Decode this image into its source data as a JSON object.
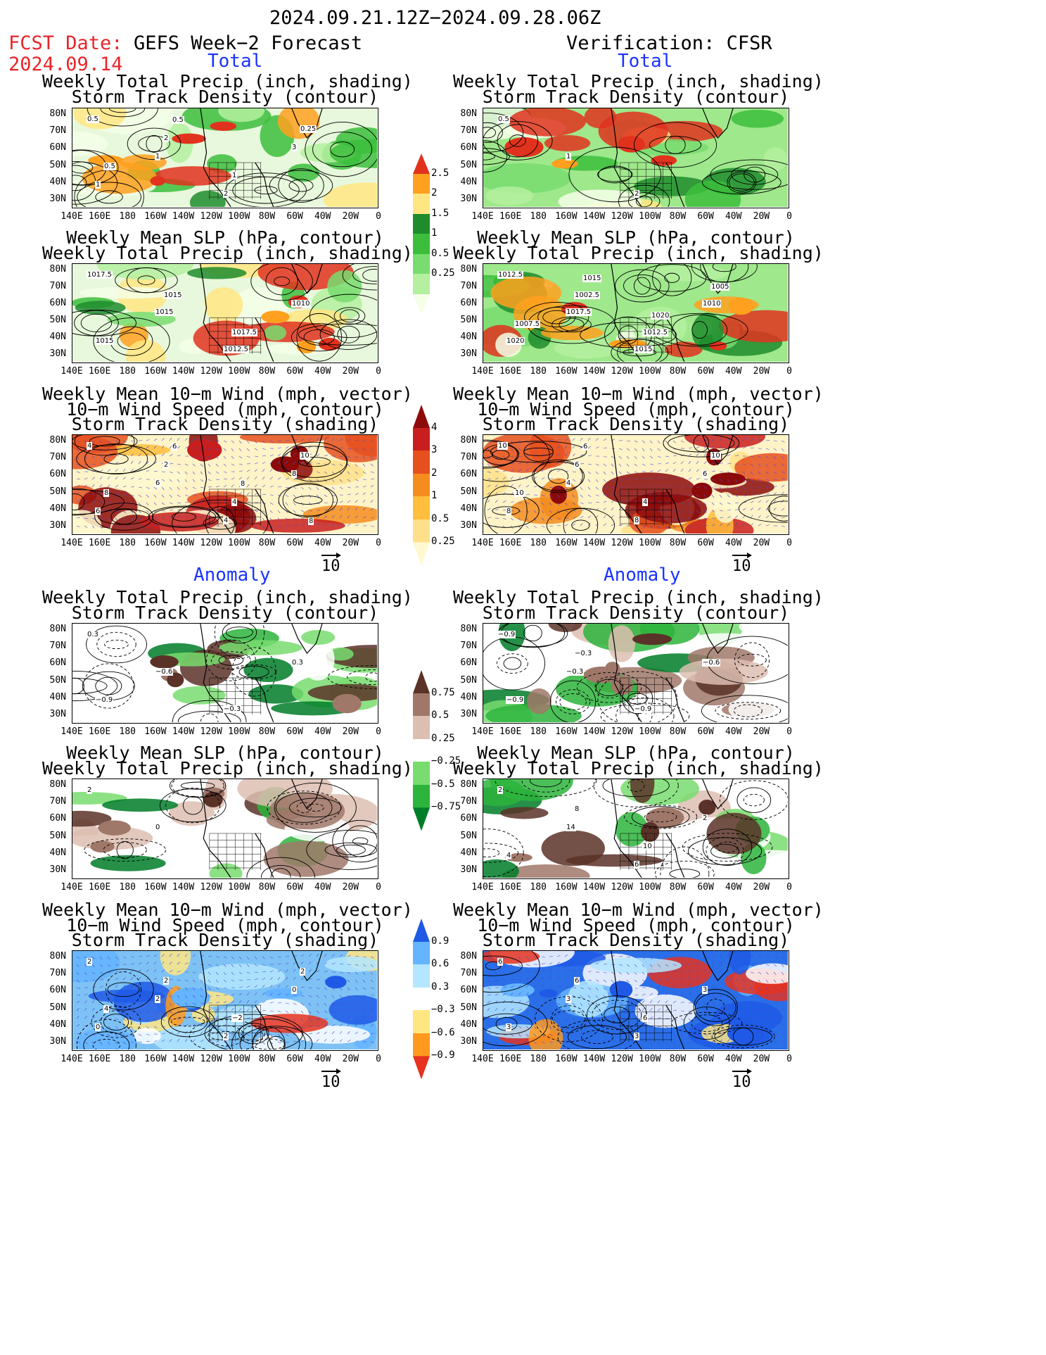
{
  "header": {
    "date_range": "2024.09.21.12Z−2024.09.28.06Z",
    "fcst_label": "FCST Date:",
    "fcst_date": "2024.09.14",
    "left_title": "GEFS Week−2 Forecast",
    "right_title": "Verification: CFSR"
  },
  "sections": {
    "total": "Total",
    "anomaly": "Anomaly"
  },
  "panel_titles": {
    "precip_storm": [
      "Weekly Total Precip (inch, shading)",
      "Storm Track Density (contour)"
    ],
    "slp_precip": [
      "Weekly Mean SLP (hPa, contour)",
      "Weekly Total Precip (inch, shading)"
    ],
    "wind_storm": [
      "Weekly Mean 10−m Wind (mph, vector)",
      "10−m Wind Speed (mph, contour)",
      "Storm Track Density (shading)"
    ]
  },
  "axes": {
    "lat_labels": [
      "80N",
      "70N",
      "60N",
      "50N",
      "40N",
      "30N"
    ],
    "lon_labels": [
      "140E",
      "160E",
      "180",
      "160W",
      "140W",
      "120W",
      "100W",
      "80W",
      "60W",
      "40W",
      "20W",
      "0"
    ]
  },
  "vector_reference": "10",
  "colorbars": {
    "precip_total": [
      "2.5",
      "2",
      "1.5",
      "1",
      "0.5",
      "0.25"
    ],
    "storm_total": [
      "4",
      "3",
      "2",
      "1",
      "0.5",
      "0.25"
    ],
    "precip_anom": [
      "0.75",
      "0.5",
      "0.25",
      "−0.25",
      "−0.5",
      "−0.75"
    ],
    "storm_anom": [
      "0.9",
      "0.6",
      "0.3",
      "−0.3",
      "−0.6",
      "−0.9"
    ]
  },
  "colors": {
    "precip_total": [
      "#f5ffe8",
      "#b4f0a0",
      "#78dc6e",
      "#3cbe3c",
      "#1e8c2d",
      "#ffe682",
      "#ffa01e",
      "#e1321e"
    ],
    "storm_total": [
      "#fff8d0",
      "#ffe08a",
      "#ffbe3c",
      "#f58c1e",
      "#e6501e",
      "#c81e1e",
      "#8c0a0a"
    ],
    "precip_anom": [
      "#007d28",
      "#2db43c",
      "#78dc6e",
      "#ffffff",
      "#ddbeb2",
      "#a0786a",
      "#5a3228"
    ],
    "storm_anom": [
      "#e6321e",
      "#ff9a1e",
      "#ffe682",
      "#ffffff",
      "#b4e6ff",
      "#64b4ff",
      "#1e5ae6"
    ],
    "label_red": "#e8252b",
    "label_blue": "#1a33ff"
  },
  "contour_labels": {
    "L0": [
      "0.5",
      "1",
      "2",
      "3",
      "1",
      "2",
      "1",
      "0.25",
      "0.5",
      "0.5"
    ],
    "R0": [
      "0.5",
      "1",
      "2"
    ],
    "L1": [
      "1017.5",
      "1015",
      "1012.5",
      "1010",
      "1015",
      "1015",
      "1017.5"
    ],
    "R1": [
      "1012.5",
      "1017.5",
      "1015",
      "1010",
      "1020",
      "1002.5",
      "1012.5",
      "1005",
      "1007.5",
      "1015",
      "1020"
    ],
    "L2": [
      "4",
      "6",
      "4",
      "8",
      "6",
      "2",
      "4",
      "10",
      "8",
      "6",
      "8",
      "8"
    ],
    "R2": [
      "10",
      "4",
      "8",
      "6",
      "8",
      "6",
      "4",
      "10",
      "10",
      "6"
    ],
    "L3": [
      "0.3",
      "−0.6",
      "−0.3",
      "0.3",
      "−0.9"
    ],
    "R3": [
      "−0.9",
      "−0.3",
      "−0.9",
      "−0.6",
      "−0.9",
      "−0.3"
    ],
    "L4": [
      "2",
      "0"
    ],
    "R4": [
      "2",
      "14",
      "6",
      "2",
      "4",
      "8",
      "10"
    ],
    "L5": [
      "2",
      "2",
      "2",
      "0",
      "0",
      "2",
      "−2",
      "2",
      "4"
    ],
    "R5": [
      "6",
      "3",
      "3",
      "3",
      "3",
      "6",
      "6"
    ]
  }
}
